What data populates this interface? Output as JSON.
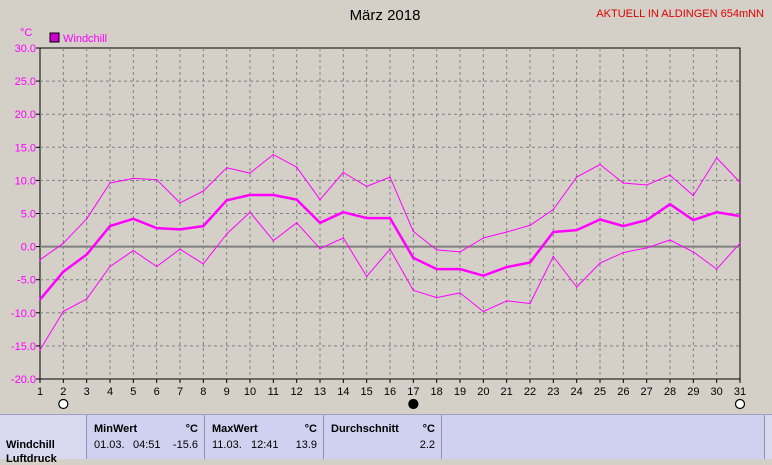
{
  "header": {
    "title": "März 2018",
    "station": "AKTUELL IN ALDINGEN 654mNN"
  },
  "chart_data": {
    "type": "line",
    "title": "März 2018",
    "ylabel": "°C",
    "ylim": [
      -20,
      30
    ],
    "yticks": [
      "30.0",
      "25.0",
      "20.0",
      "15.0",
      "10.0",
      "5.0",
      "0.0",
      "-5.0",
      "-10.0",
      "-15.0",
      "-20.0"
    ],
    "x": [
      1,
      2,
      3,
      4,
      5,
      6,
      7,
      8,
      9,
      10,
      11,
      12,
      13,
      14,
      15,
      16,
      17,
      18,
      19,
      20,
      21,
      22,
      23,
      24,
      25,
      26,
      27,
      28,
      29,
      30,
      31
    ],
    "grid": true,
    "legend_position": "top-left",
    "colors": {
      "line": "#ff00ff",
      "legend_box": "#cc00cc",
      "zero_line": "#808080",
      "grid": "#808080"
    },
    "series": [
      {
        "name": "Windchill",
        "role": "mean",
        "values": [
          -8.0,
          -3.8,
          -1.2,
          3.1,
          4.2,
          2.8,
          2.6,
          3.1,
          7.0,
          7.8,
          7.8,
          7.1,
          3.6,
          5.2,
          4.3,
          4.3,
          -1.7,
          -3.4,
          -3.4,
          -4.4,
          -3.1,
          -2.4,
          2.2,
          2.5,
          4.1,
          3.1,
          4.0,
          6.4,
          4.0,
          5.2,
          4.6
        ]
      },
      {
        "role": "max",
        "values": [
          -2.0,
          0.5,
          4.2,
          9.6,
          10.3,
          10.1,
          6.6,
          8.4,
          11.9,
          11.1,
          13.9,
          12.0,
          7.1,
          11.2,
          9.1,
          10.5,
          2.3,
          -0.5,
          -0.8,
          1.3,
          2.2,
          3.2,
          5.6,
          10.5,
          12.4,
          9.6,
          9.3,
          10.8,
          7.7,
          13.4,
          9.7
        ]
      },
      {
        "role": "min",
        "values": [
          -15.6,
          -9.8,
          -7.9,
          -3.0,
          -0.6,
          -3.0,
          -0.4,
          -2.6,
          1.9,
          5.2,
          0.9,
          3.6,
          -0.3,
          1.3,
          -4.5,
          -0.4,
          -6.6,
          -7.7,
          -7.0,
          -9.8,
          -8.2,
          -8.6,
          -1.5,
          -6.1,
          -2.5,
          -0.9,
          -0.2,
          1.0,
          -0.8,
          -3.4,
          0.5
        ]
      }
    ],
    "moon_phases": [
      {
        "day": 2,
        "phase": "full",
        "icon": "full-moon-icon"
      },
      {
        "day": 17,
        "phase": "new",
        "icon": "new-moon-icon"
      },
      {
        "day": 31,
        "phase": "full",
        "icon": "full-moon-icon"
      }
    ]
  },
  "stats": {
    "row_label": "Windchill",
    "row2_label": "Luftdruck",
    "min": {
      "header": "MinWert",
      "unit": "°C",
      "date": "01.03.",
      "time": "04:51",
      "value": "-15.6"
    },
    "max": {
      "header": "MaxWert",
      "unit": "°C",
      "date": "11.03.",
      "time": "12:41",
      "value": "13.9"
    },
    "avg": {
      "header": "Durchschnitt",
      "unit": "°C",
      "value": "2.2"
    }
  }
}
